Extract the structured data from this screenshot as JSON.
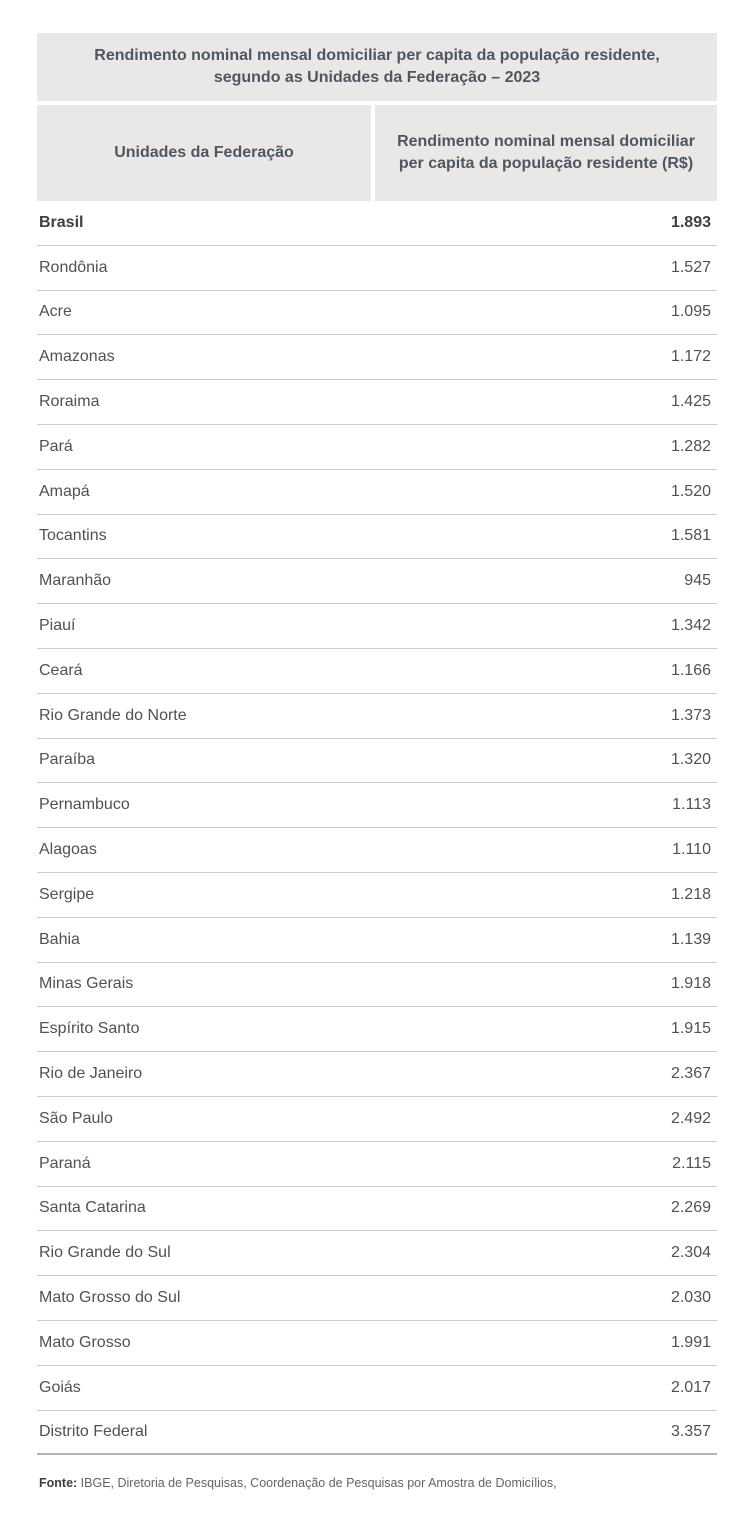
{
  "table": {
    "title": "Rendimento nominal mensal domiciliar per capita da população residente, segundo as Unidades da Federação – 2023",
    "columns": [
      "Unidades da Federação",
      "Rendimento nominal mensal domiciliar per capita da população residente (R$)"
    ],
    "rows": [
      {
        "name": "Brasil",
        "value": "1.893",
        "bold": true
      },
      {
        "name": "Rondônia",
        "value": "1.527",
        "bold": false
      },
      {
        "name": "Acre",
        "value": "1.095",
        "bold": false
      },
      {
        "name": "Amazonas",
        "value": "1.172",
        "bold": false
      },
      {
        "name": "Roraima",
        "value": "1.425",
        "bold": false
      },
      {
        "name": "Pará",
        "value": "1.282",
        "bold": false
      },
      {
        "name": "Amapá",
        "value": "1.520",
        "bold": false
      },
      {
        "name": "Tocantins",
        "value": "1.581",
        "bold": false
      },
      {
        "name": "Maranhão",
        "value": "945",
        "bold": false
      },
      {
        "name": "Piauí",
        "value": "1.342",
        "bold": false
      },
      {
        "name": "Ceará",
        "value": "1.166",
        "bold": false
      },
      {
        "name": "Rio Grande do Norte",
        "value": "1.373",
        "bold": false
      },
      {
        "name": "Paraíba",
        "value": "1.320",
        "bold": false
      },
      {
        "name": "Pernambuco",
        "value": "1.113",
        "bold": false
      },
      {
        "name": "Alagoas",
        "value": "1.110",
        "bold": false
      },
      {
        "name": "Sergipe",
        "value": "1.218",
        "bold": false
      },
      {
        "name": "Bahia",
        "value": "1.139",
        "bold": false
      },
      {
        "name": "Minas Gerais",
        "value": "1.918",
        "bold": false
      },
      {
        "name": "Espírito Santo",
        "value": "1.915",
        "bold": false
      },
      {
        "name": "Rio de Janeiro",
        "value": "2.367",
        "bold": false
      },
      {
        "name": "São Paulo",
        "value": "2.492",
        "bold": false
      },
      {
        "name": "Paraná",
        "value": "2.115",
        "bold": false
      },
      {
        "name": "Santa Catarina",
        "value": "2.269",
        "bold": false
      },
      {
        "name": "Rio Grande do Sul",
        "value": "2.304",
        "bold": false
      },
      {
        "name": "Mato Grosso do Sul",
        "value": "2.030",
        "bold": false
      },
      {
        "name": "Mato Grosso",
        "value": "1.991",
        "bold": false
      },
      {
        "name": "Goiás",
        "value": "2.017",
        "bold": false
      },
      {
        "name": "Distrito Federal",
        "value": "3.357",
        "bold": false
      }
    ]
  },
  "footer": {
    "label": "Fonte:",
    "text": " IBGE, Diretoria de Pesquisas, Coordenação de Pesquisas por Amostra de Domicílios,"
  },
  "colors": {
    "header_bg": "#e9e8e6",
    "header_text": "#4e5661",
    "row_text": "#515151",
    "bold_row_text": "#3e3e44",
    "row_border": "#cccbca",
    "table_bottom_border": "#b5b4b2",
    "footer_text": "#666462"
  },
  "chart_data": {
    "type": "table",
    "title": "Rendimento nominal mensal domiciliar per capita da população residente, segundo as Unidades da Federação – 2023",
    "columns": [
      "Unidades da Federação",
      "Rendimento nominal mensal domiciliar per capita da população residente (R$)"
    ],
    "categories": [
      "Brasil",
      "Rondônia",
      "Acre",
      "Amazonas",
      "Roraima",
      "Pará",
      "Amapá",
      "Tocantins",
      "Maranhão",
      "Piauí",
      "Ceará",
      "Rio Grande do Norte",
      "Paraíba",
      "Pernambuco",
      "Alagoas",
      "Sergipe",
      "Bahia",
      "Minas Gerais",
      "Espírito Santo",
      "Rio de Janeiro",
      "São Paulo",
      "Paraná",
      "Santa Catarina",
      "Rio Grande do Sul",
      "Mato Grosso do Sul",
      "Mato Grosso",
      "Goiás",
      "Distrito Federal"
    ],
    "values": [
      1893,
      1527,
      1095,
      1172,
      1425,
      1282,
      1520,
      1581,
      945,
      1342,
      1166,
      1373,
      1320,
      1113,
      1110,
      1218,
      1139,
      1918,
      1915,
      2367,
      2492,
      2115,
      2269,
      2304,
      2030,
      1991,
      2017,
      3357
    ],
    "source": "Fonte: IBGE, Diretoria de Pesquisas, Coordenação de Pesquisas por Amostra de Domicílios,"
  }
}
